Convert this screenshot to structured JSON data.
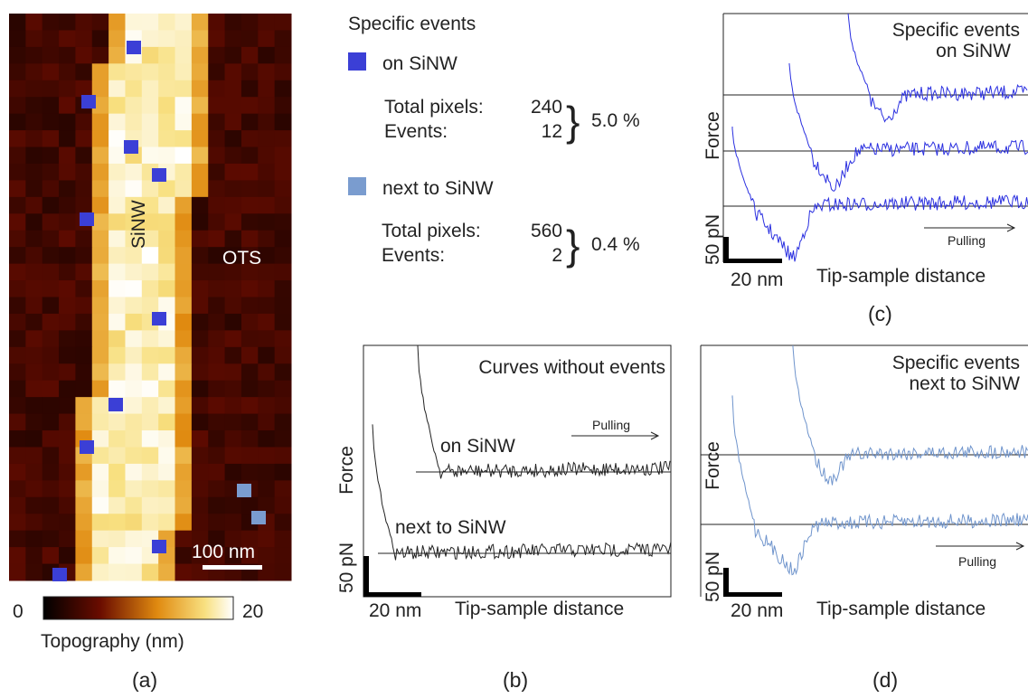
{
  "panel_a": {
    "nanowire_label": "SiNW",
    "substrate_label": "OTS",
    "scale_bar": "100 nm",
    "colorbar": {
      "min": "0",
      "max": "20",
      "label": "Topography (nm)"
    },
    "caption": "(a)"
  },
  "legend": {
    "title": "Specific events",
    "groups": [
      {
        "label": "on SiNW",
        "total_label": "Total pixels:",
        "total": "240",
        "events_label": "Events:",
        "events": "12",
        "percent": "5.0 %"
      },
      {
        "label": "next to SiNW",
        "total_label": "Total pixels:",
        "total": "560",
        "events_label": "Events:",
        "events": "2",
        "percent": "0.4 %"
      }
    ]
  },
  "panel_b": {
    "title": "Curves without events",
    "pulling": "Pulling",
    "curve_labels": [
      "on SiNW",
      "next to SiNW"
    ],
    "y_label": "Force",
    "y_scale": "50 pN",
    "x_scale": "20 nm",
    "x_label": "Tip-sample distance",
    "caption": "(b)"
  },
  "panel_c": {
    "title": [
      "Specific events",
      "on SiNW"
    ],
    "pulling": "Pulling",
    "y_label": "Force",
    "y_scale": "50 pN",
    "x_scale": "20 nm",
    "x_label": "Tip-sample distance",
    "caption": "(c)"
  },
  "panel_d": {
    "title": [
      "Specific events",
      "next to SiNW"
    ],
    "pulling": "Pulling",
    "y_label": "Force",
    "y_scale": "50 pN",
    "x_scale": "20 nm",
    "x_label": "Tip-sample distance",
    "caption": "(d)"
  }
}
